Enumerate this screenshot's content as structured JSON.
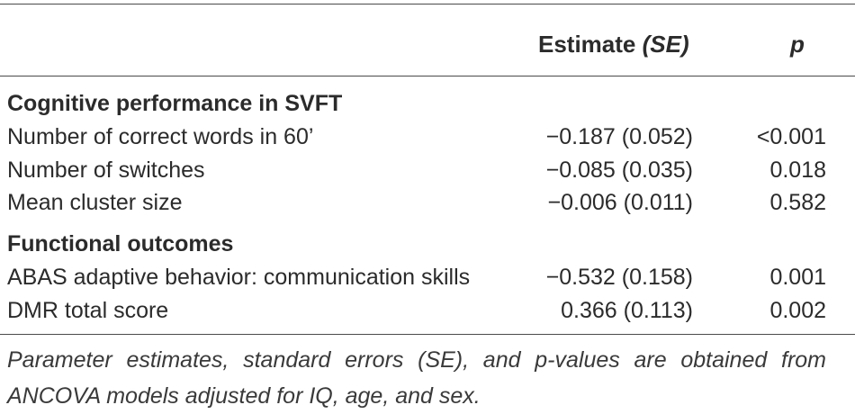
{
  "table": {
    "header": {
      "estimate": "Estimate",
      "estimate_se": "(SE)",
      "p": "p"
    },
    "sections": [
      {
        "title": "Cognitive performance in SVFT",
        "rows": [
          {
            "label": "Number of correct words in 60’",
            "estimate": "−0.187 (0.052)",
            "p": "<0.001"
          },
          {
            "label": "Number of switches",
            "estimate": "−0.085 (0.035)",
            "p": "0.018"
          },
          {
            "label": "Mean cluster size",
            "estimate": "−0.006 (0.011)",
            "p": "0.582"
          }
        ]
      },
      {
        "title": "Functional outcomes",
        "rows": [
          {
            "label": "ABAS adaptive behavior: communication skills",
            "estimate": "−0.532 (0.158)",
            "p": "0.001"
          },
          {
            "label": "DMR total score",
            "estimate": "0.366 (0.113)",
            "p": "0.002"
          }
        ]
      }
    ],
    "footnote": "Parameter estimates, standard errors (SE), and p-values are obtained from ANCOVA models adjusted for IQ, age, and sex."
  }
}
